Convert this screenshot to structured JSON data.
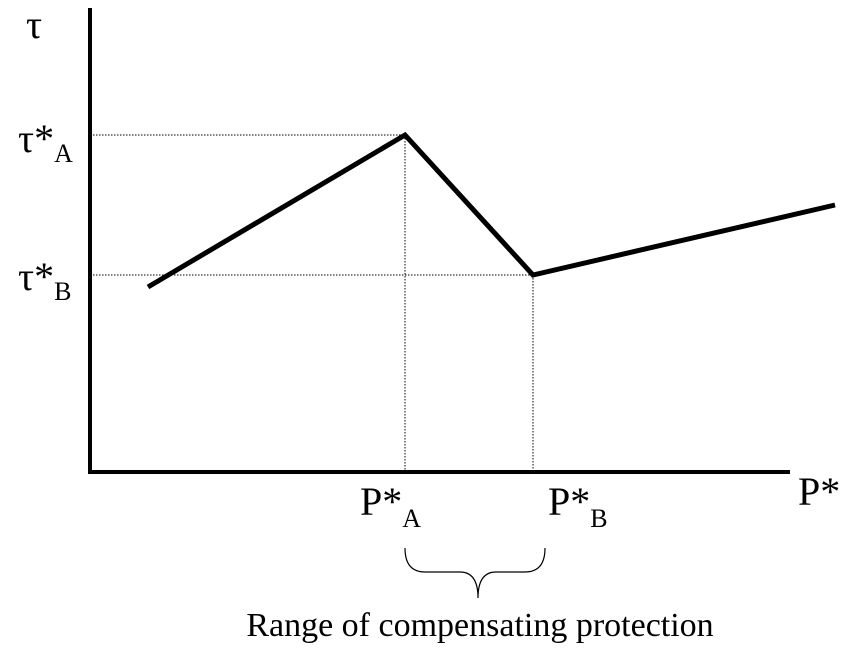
{
  "y_axis_label": "τ",
  "x_axis_label": "P*",
  "y_labels": [
    {
      "main": "τ*",
      "sub": "A"
    },
    {
      "main": "τ*",
      "sub": "B"
    }
  ],
  "x_labels": [
    {
      "main": "P*",
      "sub": "A"
    },
    {
      "main": "P*",
      "sub": "B"
    }
  ],
  "brace_label": "Range of compensating protection"
}
